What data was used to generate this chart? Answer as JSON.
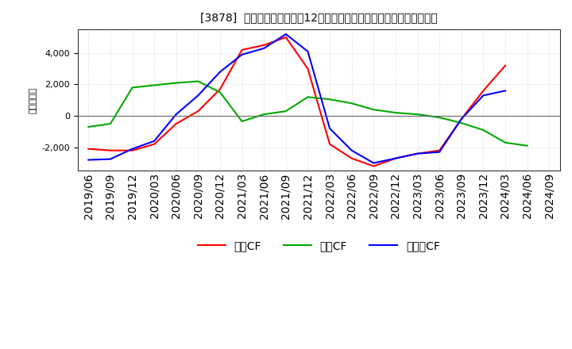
{
  "title": "[3878]  キャッシュフローの12か月移動合計の対前年同期増減額の推移",
  "ylabel": "（百万円）",
  "background_color": "#ffffff",
  "plot_background_color": "#ffffff",
  "grid_color": "#aaaaaa",
  "dates": [
    "2019/06",
    "2019/09",
    "2019/12",
    "2020/03",
    "2020/06",
    "2020/09",
    "2020/12",
    "2021/03",
    "2021/06",
    "2021/09",
    "2021/12",
    "2022/03",
    "2022/06",
    "2022/09",
    "2022/12",
    "2023/03",
    "2023/06",
    "2023/09",
    "2023/12",
    "2024/03",
    "2024/06",
    "2024/09"
  ],
  "operating_cf": [
    -2100,
    -2200,
    -2200,
    -1800,
    -500,
    300,
    1700,
    4200,
    4500,
    5000,
    3000,
    -1800,
    -2700,
    -3200,
    -2700,
    -2400,
    -2200,
    -200,
    1600,
    3200,
    null,
    null
  ],
  "investing_cf": [
    -700,
    -500,
    1800,
    1950,
    2100,
    2200,
    1500,
    -350,
    100,
    300,
    1200,
    1050,
    800,
    400,
    200,
    100,
    -100,
    -450,
    -900,
    -1700,
    -1900,
    null
  ],
  "free_cf": [
    -2800,
    -2750,
    -2100,
    -1600,
    100,
    1300,
    2800,
    3900,
    4300,
    5200,
    4100,
    -800,
    -2200,
    -3000,
    -2700,
    -2400,
    -2300,
    -200,
    1300,
    1600,
    null,
    null
  ],
  "operating_color": "#ff0000",
  "investing_color": "#00aa00",
  "free_color": "#0000ff",
  "ylim": [
    -3500,
    5500
  ],
  "yticks": [
    -2000,
    0,
    2000,
    4000
  ],
  "legend_labels": [
    "営業CF",
    "投資CF",
    "フリーCF"
  ]
}
